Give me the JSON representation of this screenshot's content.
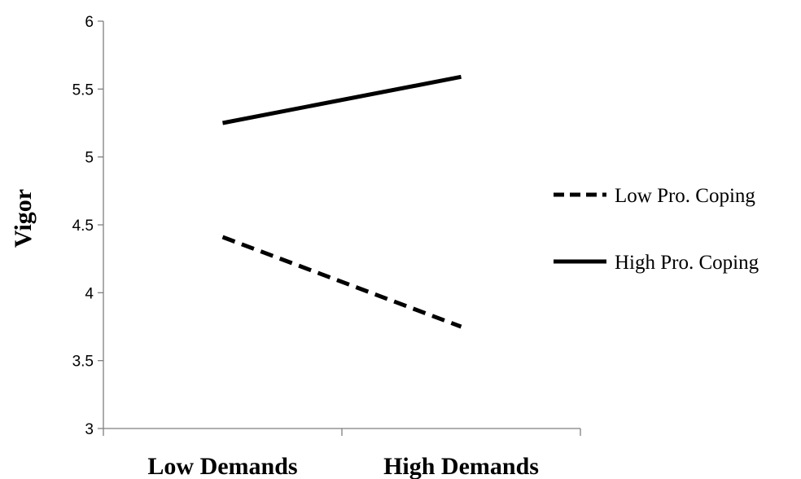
{
  "chart_data": {
    "type": "line",
    "categories": [
      "Low Demands",
      "High Demands"
    ],
    "series": [
      {
        "name": "Low Pro. Coping",
        "values": [
          4.41,
          3.75
        ],
        "dash": true,
        "color": "#000000"
      },
      {
        "name": "High Pro. Coping",
        "values": [
          5.25,
          5.59
        ],
        "dash": false,
        "color": "#000000"
      }
    ],
    "yticks": [
      "3",
      "3.5",
      "4",
      "4.5",
      "5",
      "5.5",
      "6"
    ],
    "ylim": [
      3,
      6
    ],
    "ylabel": "Vigor",
    "xlabel": "",
    "grid": false,
    "legend_position": "right"
  }
}
